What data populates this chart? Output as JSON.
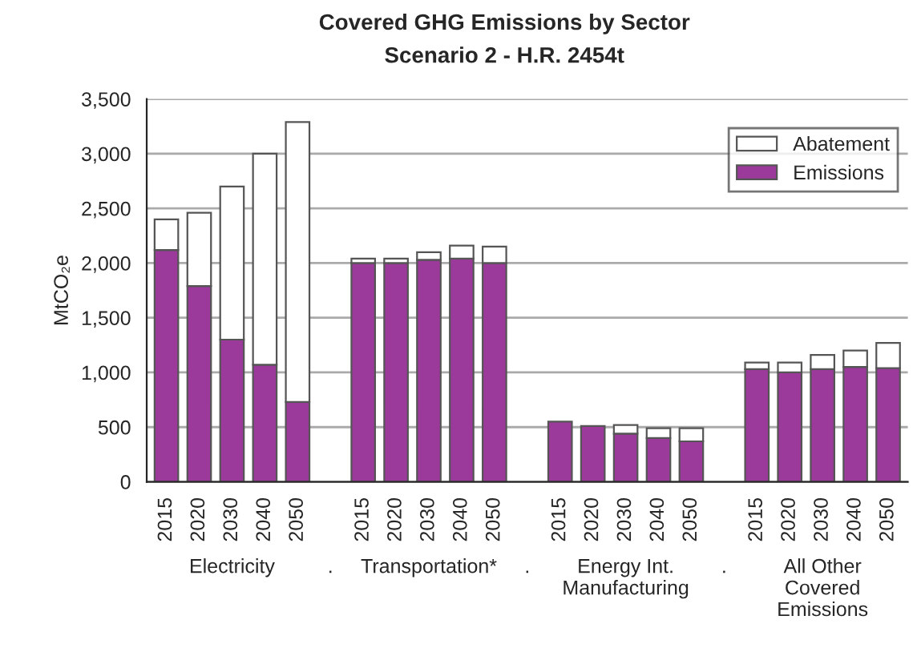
{
  "chart_data": {
    "type": "bar",
    "title": "Covered GHG Emissions by Sector",
    "subtitle": "Scenario 2 - H.R. 2454t",
    "ylabel": "MtCO₂e",
    "categories": [
      "2015",
      "2020",
      "2030",
      "2040",
      "2050",
      null,
      "2015",
      "2020",
      "2030",
      "2040",
      "2050",
      null,
      "2015",
      "2020",
      "2030",
      "2040",
      "2050",
      null,
      "2015",
      "2020",
      "2030",
      "2040",
      "2050"
    ],
    "stacked": true,
    "series": [
      {
        "name": "Emissions",
        "color": "#9b3a9b",
        "values": [
          2120,
          1790,
          1300,
          1070,
          730,
          null,
          2000,
          2000,
          2030,
          2040,
          2000,
          null,
          550,
          510,
          440,
          400,
          370,
          null,
          1030,
          1000,
          1030,
          1050,
          1040
        ]
      },
      {
        "name": "Abatement",
        "color": "#ffffff",
        "values": [
          280,
          670,
          1400,
          1930,
          2560,
          null,
          40,
          40,
          70,
          120,
          150,
          null,
          null,
          null,
          80,
          90,
          120,
          null,
          60,
          90,
          130,
          150,
          230
        ]
      }
    ],
    "annotations": [
      "Electricity",
      ".",
      "Transportation*",
      ".",
      "Energy Int.\nManufacturing",
      ".",
      "All Other\nCovered\nEmissions"
    ],
    "ylim": [
      0,
      3500
    ],
    "yticks": [
      {
        "value": 0,
        "label": "0"
      },
      {
        "value": 500,
        "label": "500"
      },
      {
        "value": 1000,
        "label": "1,000"
      },
      {
        "value": 1500,
        "label": "1,500"
      },
      {
        "value": 2000,
        "label": "2,000"
      },
      {
        "value": 2500,
        "label": "2,500"
      },
      {
        "value": 3000,
        "label": "3,000"
      },
      {
        "value": 3500,
        "label": "3,500"
      }
    ],
    "grid": "y",
    "legend": "top right"
  }
}
